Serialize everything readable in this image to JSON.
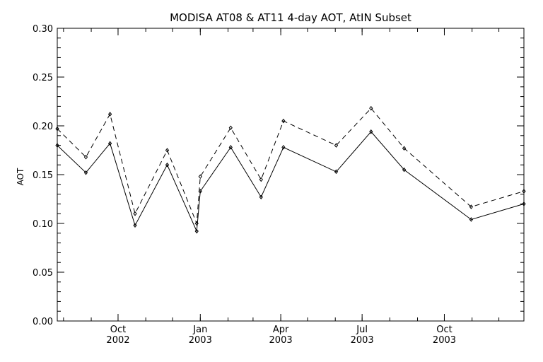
{
  "chart_data": {
    "type": "line",
    "title": "MODISA AT08 & AT11 4-day AOT, AtIN Subset",
    "xlabel": "",
    "ylabel": "AOT",
    "ylim": [
      0.0,
      0.3
    ],
    "xlim": [
      "2002-07-25",
      "2003-12-29"
    ],
    "y_ticks": [
      "0.00",
      "0.05",
      "0.10",
      "0.15",
      "0.20",
      "0.25",
      "0.30"
    ],
    "x_ticks": [
      {
        "date": "2002-10-01",
        "month": "Oct",
        "year": "2002"
      },
      {
        "date": "2003-01-01",
        "month": "Jan",
        "year": "2003"
      },
      {
        "date": "2003-04-01",
        "month": "Apr",
        "year": "2003"
      },
      {
        "date": "2003-07-01",
        "month": "Jul",
        "year": "2003"
      },
      {
        "date": "2003-10-01",
        "month": "Oct",
        "year": "2003"
      }
    ],
    "grid": false,
    "legend": "none",
    "series": [
      {
        "style": "solid",
        "color": "#000000",
        "points": [
          {
            "x": "2002-07-25",
            "y": 0.18
          },
          {
            "x": "2002-08-26",
            "y": 0.152
          },
          {
            "x": "2002-09-22",
            "y": 0.182
          },
          {
            "x": "2002-10-20",
            "y": 0.098
          },
          {
            "x": "2002-11-25",
            "y": 0.16
          },
          {
            "x": "2002-12-28",
            "y": 0.092
          },
          {
            "x": "2003-01-01",
            "y": 0.133
          },
          {
            "x": "2003-02-04",
            "y": 0.178
          },
          {
            "x": "2003-03-10",
            "y": 0.127
          },
          {
            "x": "2003-04-04",
            "y": 0.178
          },
          {
            "x": "2003-06-02",
            "y": 0.153
          },
          {
            "x": "2003-07-11",
            "y": 0.194
          },
          {
            "x": "2003-08-17",
            "y": 0.155
          },
          {
            "x": "2003-10-31",
            "y": 0.104
          },
          {
            "x": "2003-12-29",
            "y": 0.12
          }
        ]
      },
      {
        "style": "dashed",
        "color": "#000000",
        "points": [
          {
            "x": "2002-07-25",
            "y": 0.197
          },
          {
            "x": "2002-08-26",
            "y": 0.168
          },
          {
            "x": "2002-09-22",
            "y": 0.212
          },
          {
            "x": "2002-10-20",
            "y": 0.11
          },
          {
            "x": "2002-11-25",
            "y": 0.175
          },
          {
            "x": "2002-12-28",
            "y": 0.1
          },
          {
            "x": "2003-01-01",
            "y": 0.148
          },
          {
            "x": "2003-02-04",
            "y": 0.198
          },
          {
            "x": "2003-03-10",
            "y": 0.145
          },
          {
            "x": "2003-04-04",
            "y": 0.205
          },
          {
            "x": "2003-06-02",
            "y": 0.18
          },
          {
            "x": "2003-07-11",
            "y": 0.218
          },
          {
            "x": "2003-08-17",
            "y": 0.177
          },
          {
            "x": "2003-10-31",
            "y": 0.117
          },
          {
            "x": "2003-12-29",
            "y": 0.133
          }
        ]
      }
    ]
  }
}
